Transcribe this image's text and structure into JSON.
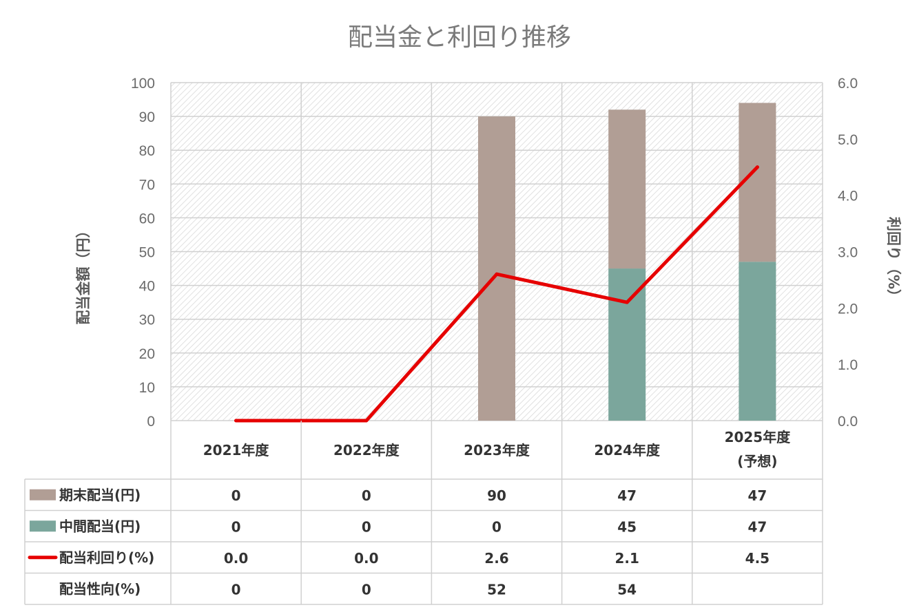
{
  "chart_data": {
    "type": "bar",
    "stacked": true,
    "title": "配当金と利回り推移",
    "categories": [
      {
        "line1": "2021年度",
        "line2": ""
      },
      {
        "line1": "2022年度",
        "line2": ""
      },
      {
        "line1": "2023年度",
        "line2": ""
      },
      {
        "line1": "2024年度",
        "line2": ""
      },
      {
        "line1": "2025年度",
        "line2": "(予想)"
      }
    ],
    "ylabel": "配当金額（円）",
    "y2label": "利回り（%）",
    "ylim": [
      0,
      100
    ],
    "yticks": [
      "0",
      "10",
      "20",
      "30",
      "40",
      "50",
      "60",
      "70",
      "80",
      "90",
      "100"
    ],
    "y2lim": [
      0,
      6
    ],
    "y2ticks": [
      "0.0",
      "1.0",
      "2.0",
      "3.0",
      "4.0",
      "5.0",
      "6.0"
    ],
    "grid": true,
    "series": [
      {
        "name": "中間配当(円)",
        "kind": "bar",
        "color": "#7ba69c",
        "values": [
          0,
          0,
          0,
          45,
          47
        ],
        "display": [
          "0",
          "0",
          "0",
          "45",
          "47"
        ]
      },
      {
        "name": "期末配当(円)",
        "kind": "bar",
        "color": "#b19e95",
        "values": [
          0,
          0,
          90,
          47,
          47
        ],
        "display": [
          "0",
          "0",
          "90",
          "47",
          "47"
        ]
      },
      {
        "name": "配当利回り(%)",
        "kind": "line",
        "axis": "right",
        "color": "#e60000",
        "values": [
          0.0,
          0.0,
          2.6,
          2.1,
          4.5
        ],
        "display": [
          "0.0",
          "0.0",
          "2.6",
          "2.1",
          "4.5"
        ]
      }
    ],
    "table_rows": [
      {
        "label": "期末配当(円)",
        "legend": "bar",
        "color": "#b19e95",
        "cells": [
          "0",
          "0",
          "90",
          "47",
          "47"
        ]
      },
      {
        "label": "中間配当(円)",
        "legend": "bar",
        "color": "#7ba69c",
        "cells": [
          "0",
          "0",
          "0",
          "45",
          "47"
        ]
      },
      {
        "label": "配当利回り(%)",
        "legend": "line",
        "color": "#e60000",
        "cells": [
          "0.0",
          "0.0",
          "2.6",
          "2.1",
          "4.5"
        ]
      },
      {
        "label": "配当性向(%)",
        "legend": "none",
        "color": "",
        "cells": [
          "0",
          "0",
          "52",
          "54",
          ""
        ]
      }
    ]
  }
}
